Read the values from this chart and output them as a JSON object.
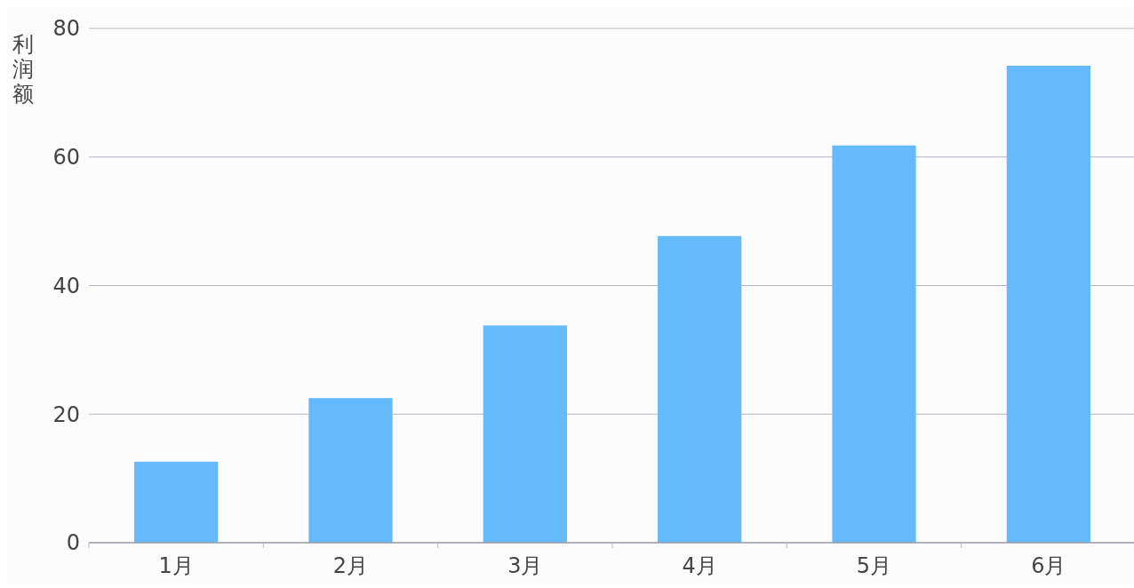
{
  "chart_data": {
    "type": "bar",
    "ylabel": "利润额",
    "categories": [
      "1月",
      "2月",
      "3月",
      "4月",
      "5月",
      "6月"
    ],
    "values": [
      12.6,
      22.5,
      33.8,
      47.7,
      61.8,
      74.2
    ],
    "color": "#64bafa",
    "ylim": [
      0,
      80
    ],
    "yticks": [
      0,
      20,
      40,
      60,
      80
    ],
    "grid": "y"
  }
}
